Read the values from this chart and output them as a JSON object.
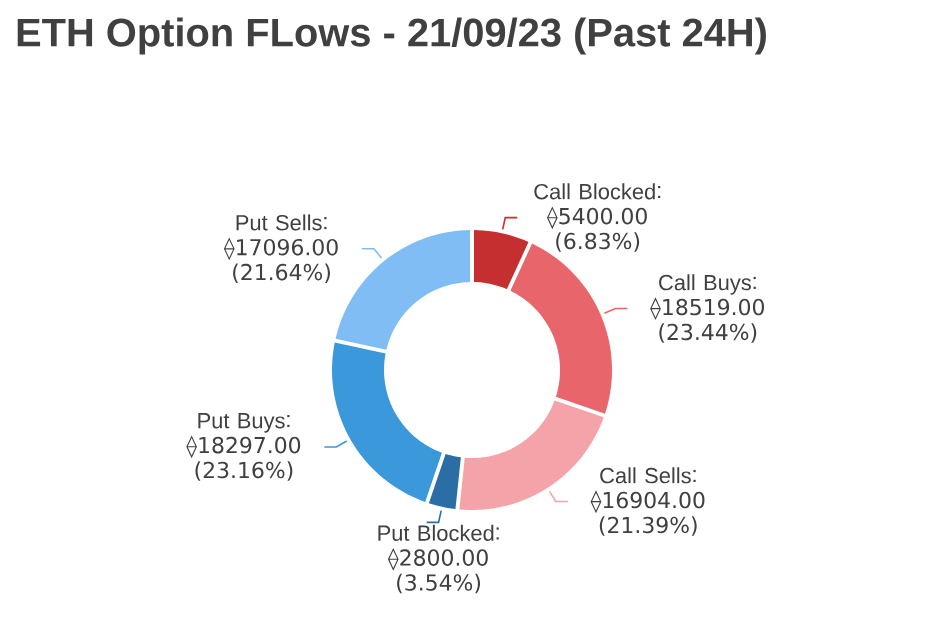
{
  "chart_data": {
    "type": "donut",
    "title": "ETH Option FLows - 21/09/23  (Past 24H)",
    "categories": [
      "Call Blocked",
      "Call Buys",
      "Call Sells",
      "Put Blocked",
      "Put Buys",
      "Put Sells"
    ],
    "values": [
      5400,
      18519,
      16904,
      2800,
      18297,
      17096
    ],
    "value_labels": [
      "⟠5400.00 (6.83%)",
      "⟠18519.00 (23.44%)",
      "⟠16904.00 (21.39%)",
      "⟠2800.00 (3.54%)",
      "⟠18297.00 (23.16%)",
      "⟠17096.00 (21.64%)"
    ],
    "colors": [
      "#c62f2f",
      "#e8666b",
      "#f4a4a8",
      "#2b6ea6",
      "#3a98db",
      "#7fbdf4"
    ]
  }
}
